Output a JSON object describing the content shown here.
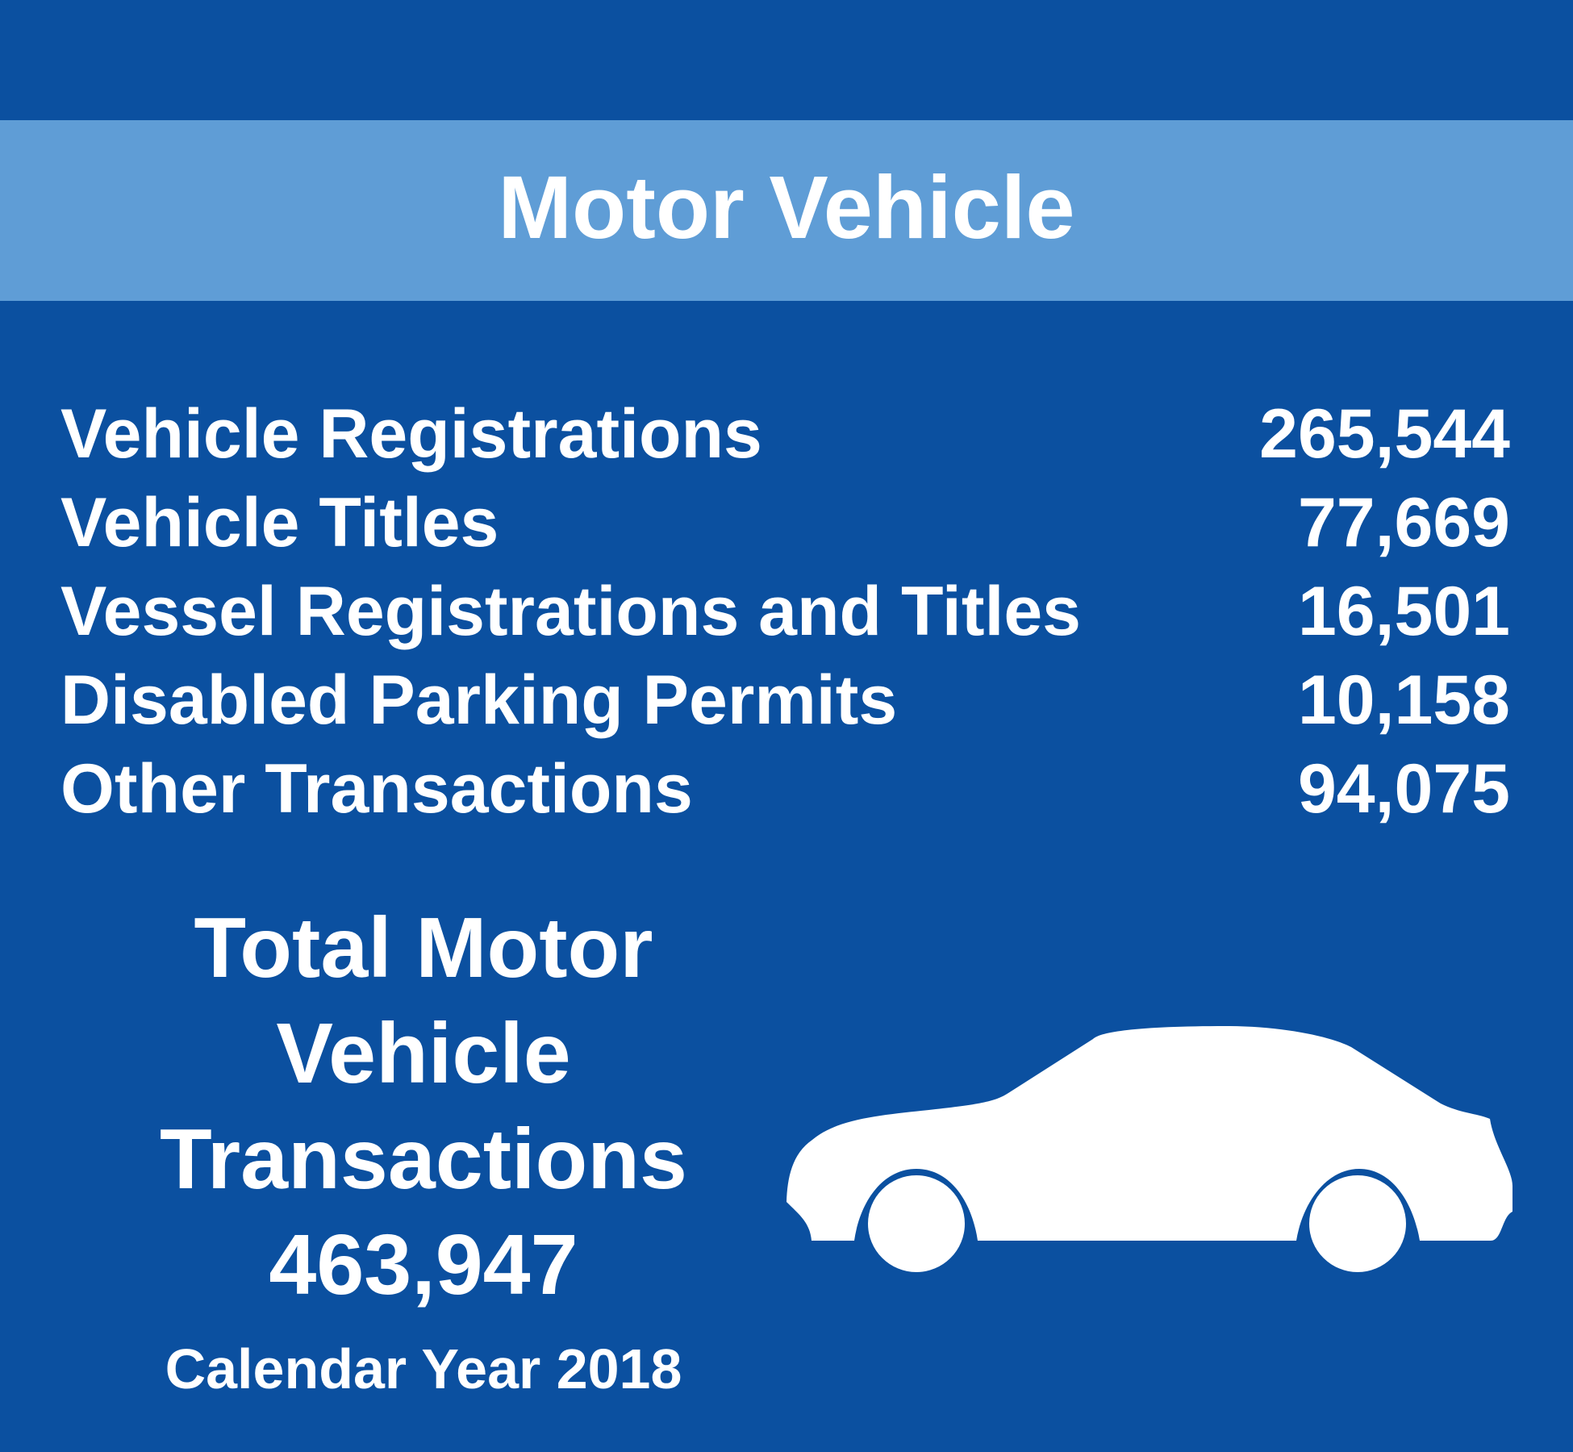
{
  "header": {
    "title": "Motor Vehicle"
  },
  "stats": [
    {
      "label": "Vehicle Registrations",
      "value": "265,544"
    },
    {
      "label": "Vehicle Titles",
      "value": "77,669"
    },
    {
      "label": "Vessel Registrations and Titles",
      "value": "16,501"
    },
    {
      "label": "Disabled Parking Permits",
      "value": "10,158"
    },
    {
      "label": "Other Transactions",
      "value": "94,075"
    }
  ],
  "total": {
    "line1": "Total Motor",
    "line2": "Vehicle",
    "line3": "Transactions",
    "value": "463,947",
    "period": "Calendar Year 2018"
  },
  "colors": {
    "background": "#0b50a0",
    "header_band": "#5f9dd6",
    "text": "#ffffff"
  },
  "icons": {
    "car": "car-icon"
  }
}
